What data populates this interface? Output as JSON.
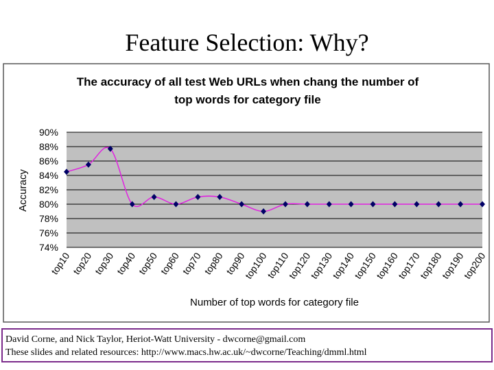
{
  "slide_title": "Feature Selection:  Why?",
  "chart_data": {
    "type": "line",
    "title": [
      "The accuracy of all test Web URLs when chang the number of",
      "top words for category file"
    ],
    "x_label": "Number of top words for category file",
    "y_label": "Accuracy",
    "categories": [
      "top10",
      "top20",
      "top30",
      "top40",
      "top50",
      "top60",
      "top70",
      "top80",
      "top90",
      "top100",
      "top110",
      "top120",
      "top130",
      "top140",
      "top150",
      "top160",
      "top170",
      "top180",
      "top190",
      "top200"
    ],
    "values": [
      84.5,
      85.5,
      87.7,
      80,
      81,
      80,
      81,
      81,
      80,
      79,
      80,
      80,
      80,
      80,
      80,
      80,
      80,
      80,
      80,
      80
    ],
    "color": "#e020e0",
    "marker_color": "#000066",
    "smooth": true,
    "ylim": [
      74,
      90
    ],
    "yticks": [
      {
        "value": 74,
        "label": "74%"
      },
      {
        "value": 76,
        "label": "76%"
      },
      {
        "value": 78,
        "label": "78%"
      },
      {
        "value": 80,
        "label": "80%"
      },
      {
        "value": 82,
        "label": "82%"
      },
      {
        "value": 84,
        "label": "84%"
      },
      {
        "value": 86,
        "label": "86%"
      },
      {
        "value": 88,
        "label": "88%"
      },
      {
        "value": 90,
        "label": "90%"
      }
    ],
    "grid": true,
    "plot_background": "#c0c0c0"
  },
  "footer": [
    "David Corne, and Nick Taylor,  Heriot-Watt University  -  dwcorne@gmail.com",
    "These slides and related resources:   http://www.macs.hw.ac.uk/~dwcorne/Teaching/dmml.html"
  ]
}
